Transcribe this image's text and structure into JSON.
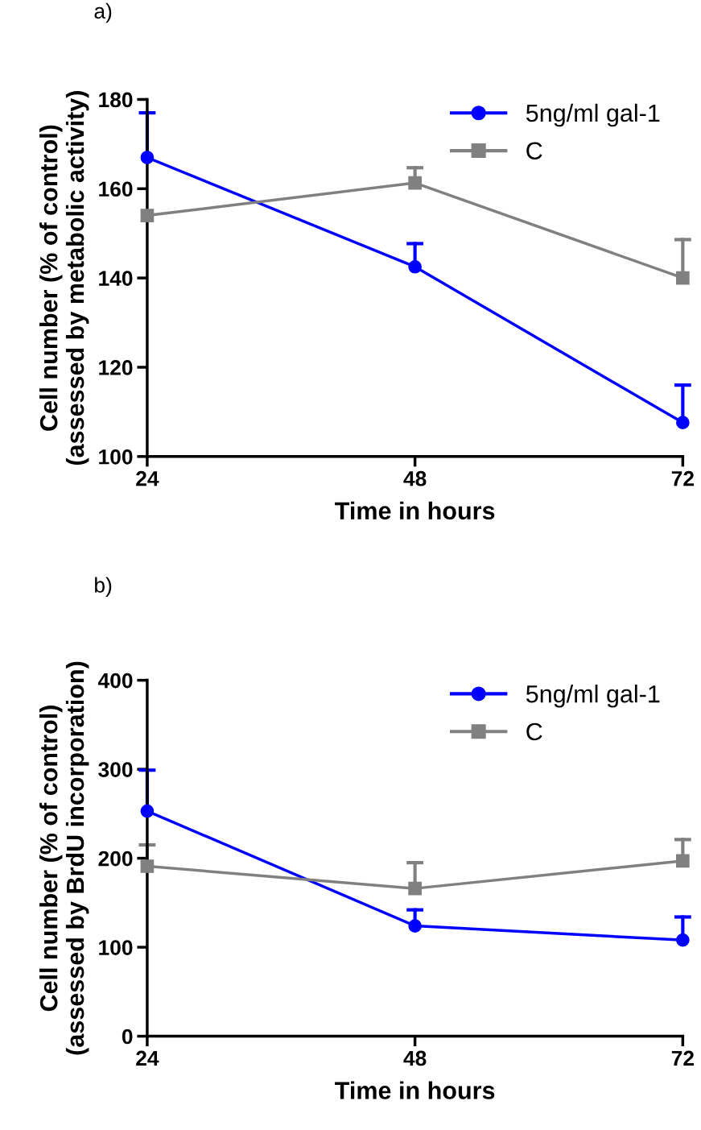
{
  "chart_data": [
    {
      "type": "line",
      "title": "a)",
      "xlabel": "Time in hours",
      "ylabel": "Cell number (% of control)\n(assessed by metabolic activity)",
      "x": [
        24,
        48,
        72
      ],
      "xlim": [
        24,
        72
      ],
      "xticks": [
        24,
        48,
        72
      ],
      "ylim": [
        100,
        180
      ],
      "yticks": [
        100,
        120,
        140,
        160,
        180
      ],
      "grid": false,
      "legend": "top right",
      "series": [
        {
          "name": "5ng/ml gal-1",
          "color": "#0000ff",
          "marker": "circle",
          "values": [
            167,
            142.5,
            107.6
          ],
          "errors": [
            [
              167,
              177
            ],
            [
              142.5,
              147.7
            ],
            [
              107.6,
              116
            ]
          ]
        },
        {
          "name": "C",
          "color": "#808080",
          "marker": "square",
          "values": [
            154,
            161.3,
            140
          ],
          "errors": [
            null,
            [
              161.3,
              164.7
            ],
            [
              140,
              148.6
            ]
          ]
        }
      ]
    },
    {
      "type": "line",
      "title": "b)",
      "xlabel": "Time in hours",
      "ylabel": "Cell number (% of control)\n(assessed by BrdU incorporation)",
      "x": [
        24,
        48,
        72
      ],
      "xlim": [
        24,
        72
      ],
      "xticks": [
        24,
        48,
        72
      ],
      "ylim": [
        0,
        400
      ],
      "yticks": [
        0,
        100,
        200,
        300,
        400
      ],
      "grid": false,
      "legend": "top right",
      "series": [
        {
          "name": "5ng/ml gal-1",
          "color": "#0000ff",
          "marker": "circle",
          "values": [
            253,
            124,
            108
          ],
          "errors": [
            [
              253,
              299
            ],
            [
              124,
              142
            ],
            [
              108,
              134
            ]
          ]
        },
        {
          "name": "C",
          "color": "#808080",
          "marker": "square",
          "values": [
            191,
            166,
            197
          ],
          "errors": [
            [
              191,
              215
            ],
            [
              166,
              195
            ],
            [
              197,
              221
            ]
          ]
        }
      ]
    }
  ]
}
